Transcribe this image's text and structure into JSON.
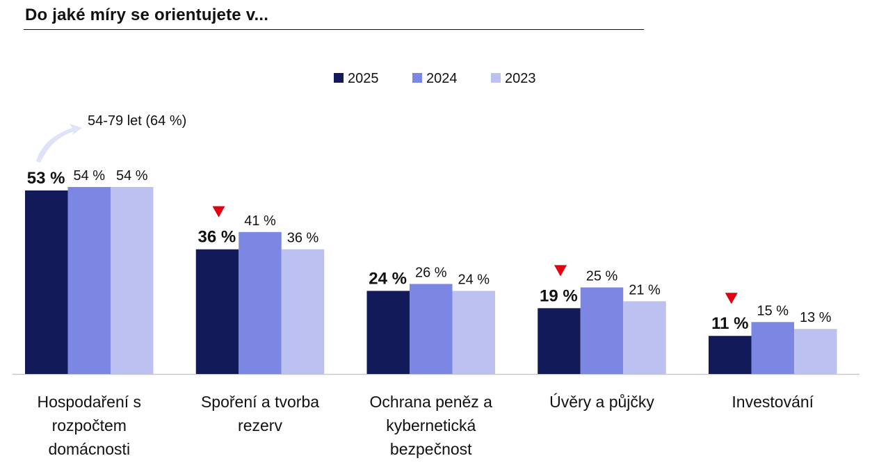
{
  "title": "Do jaké míry se orientujete v...",
  "annotation": {
    "text": "54-79 let (64 %)"
  },
  "colors": {
    "s2025": "#131a5a",
    "s2024": "#7b87e3",
    "s2023": "#bcc1f1",
    "decline_marker": "#e3000f"
  },
  "chart_data": {
    "type": "bar",
    "title": "Do jaké míry se orientujete v...",
    "categories": [
      [
        "Hospodaření s",
        "rozpočtem",
        "domácnosti"
      ],
      [
        "Spoření a tvorba",
        "rezerv"
      ],
      [
        "Ochrana peněz a",
        "kybernetická",
        "bezpečnost"
      ],
      [
        "Úvěry a půjčky"
      ],
      [
        "Investování"
      ]
    ],
    "series": [
      {
        "name": "2025",
        "values": [
          53,
          36,
          24,
          19,
          11
        ],
        "labels": [
          "53 %",
          "36 %",
          "24 %",
          "19 %",
          "11 %"
        ]
      },
      {
        "name": "2024",
        "values": [
          54,
          41,
          26,
          25,
          15
        ],
        "labels": [
          "54 %",
          "41 %",
          "26 %",
          "25 %",
          "15 %"
        ]
      },
      {
        "name": "2023",
        "values": [
          54,
          36,
          24,
          21,
          13
        ],
        "labels": [
          "54 %",
          "36 %",
          "24 %",
          "21 %",
          "13 %"
        ]
      }
    ],
    "decline_markers": [
      false,
      true,
      false,
      true,
      true
    ],
    "ylim": [
      0,
      54
    ],
    "legend": "top-center",
    "grid": false
  }
}
